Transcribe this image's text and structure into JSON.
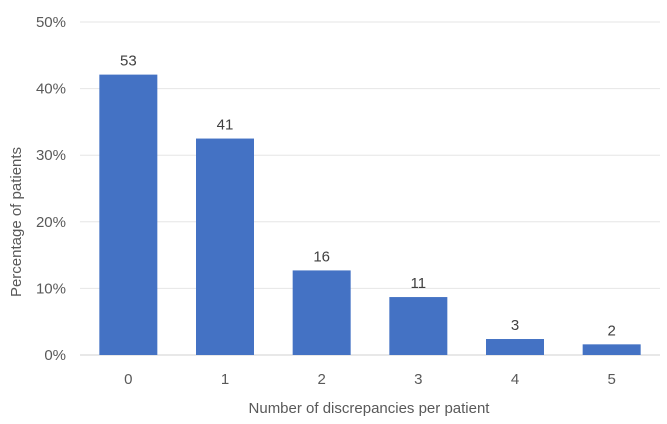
{
  "chart_data": {
    "type": "bar",
    "categories": [
      "0",
      "1",
      "2",
      "3",
      "4",
      "5"
    ],
    "values": [
      42.1,
      32.5,
      12.7,
      8.7,
      2.4,
      1.6
    ],
    "data_labels": [
      "53",
      "41",
      "16",
      "11",
      "3",
      "2"
    ],
    "title": "",
    "xlabel": "Number of discrepancies per patient",
    "ylabel": "Percentage of patients",
    "ylim": [
      0,
      50
    ],
    "yticks": [
      0,
      10,
      20,
      30,
      40,
      50
    ],
    "ytick_labels": [
      "0%",
      "10%",
      "20%",
      "30%",
      "40%",
      "50%"
    ],
    "grid": true,
    "legend": "none",
    "bar_color": "#4472c4"
  }
}
